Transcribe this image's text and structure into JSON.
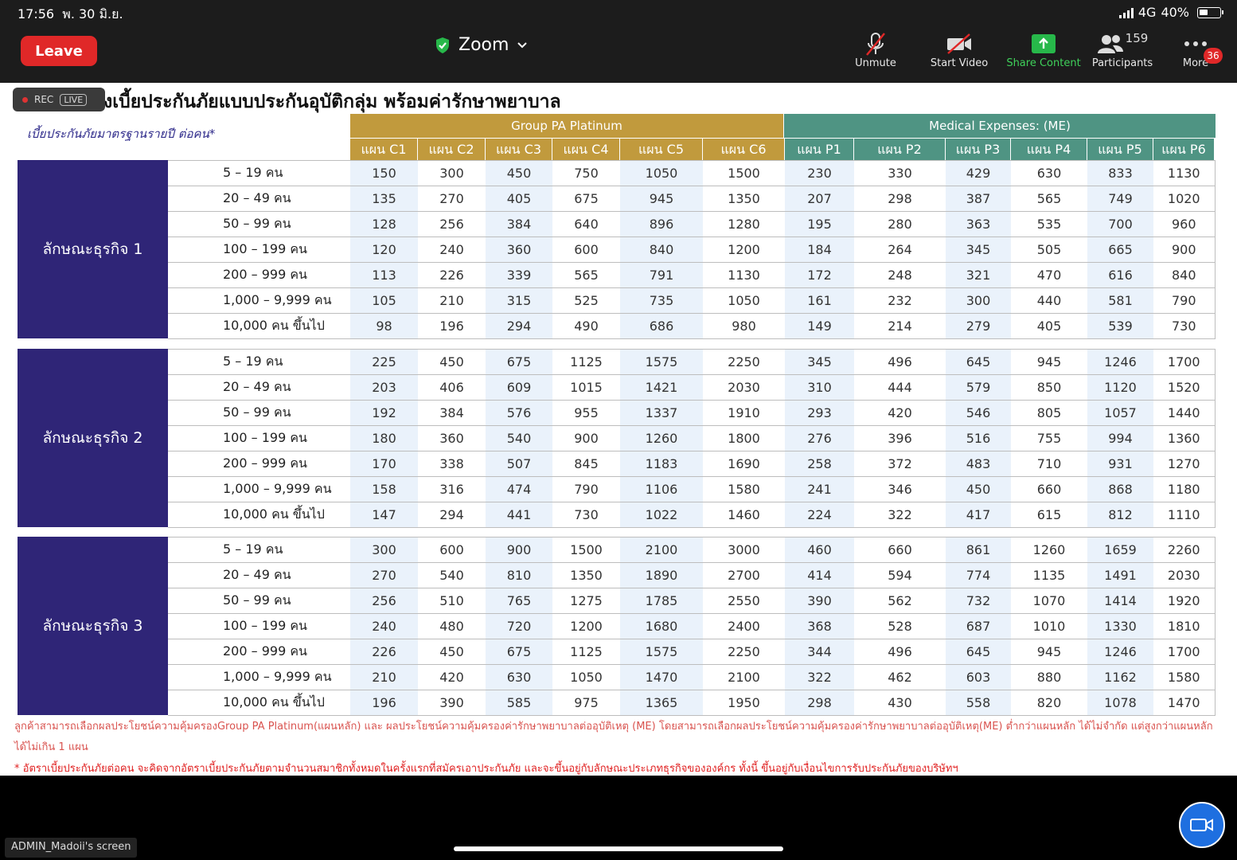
{
  "status": {
    "time": "17:56",
    "date": "พ. 30 มิ.ย.",
    "network": "4G",
    "battery": "40%",
    "battery_level": 0.4
  },
  "meeting": {
    "leave_label": "Leave",
    "app_title": "Zoom",
    "toolbar": {
      "unmute": "Unmute",
      "start_video": "Start Video",
      "share_content": "Share Content",
      "participants": "Participants",
      "participants_count": "159",
      "more": "More",
      "more_badge": "36"
    },
    "rec_label": "REC",
    "live_label": "LIVE",
    "screen_label": "ADMIN_Madoii's screen"
  },
  "doc": {
    "title": "งเบี้ยประกันภัยแบบประกันอุบัติกลุ่ม พร้อมค่ารักษาพยาบาล",
    "rate_label": "เบี้ยประกันภัยมาตรฐานรายปี ต่อคน*",
    "group_pa": "Group PA Platinum",
    "me": "Medical Expenses: (ME)",
    "plans": [
      "แผน C1",
      "แผน C2",
      "แผน C3",
      "แผน C4",
      "แผน C5",
      "แผน C6",
      "แผน P1",
      "แผน P2",
      "แผน P3",
      "แผน P4",
      "แผน P5",
      "แผน P6"
    ],
    "sizes": [
      "5 – 19 คน",
      "20 – 49 คน",
      "50 – 99 คน",
      "100 – 199 คน",
      "200 – 999 คน",
      "1,000 – 9,999 คน",
      "10,000 คน ขึ้นไป"
    ],
    "groups": [
      {
        "name": "ลักษณะธุรกิจ 1",
        "rows": [
          [
            "150",
            "300",
            "450",
            "750",
            "1050",
            "1500",
            "230",
            "330",
            "429",
            "630",
            "833",
            "1130"
          ],
          [
            "135",
            "270",
            "405",
            "675",
            "945",
            "1350",
            "207",
            "298",
            "387",
            "565",
            "749",
            "1020"
          ],
          [
            "128",
            "256",
            "384",
            "640",
            "896",
            "1280",
            "195",
            "280",
            "363",
            "535",
            "700",
            "960"
          ],
          [
            "120",
            "240",
            "360",
            "600",
            "840",
            "1200",
            "184",
            "264",
            "345",
            "505",
            "665",
            "900"
          ],
          [
            "113",
            "226",
            "339",
            "565",
            "791",
            "1130",
            "172",
            "248",
            "321",
            "470",
            "616",
            "840"
          ],
          [
            "105",
            "210",
            "315",
            "525",
            "735",
            "1050",
            "161",
            "232",
            "300",
            "440",
            "581",
            "790"
          ],
          [
            "98",
            "196",
            "294",
            "490",
            "686",
            "980",
            "149",
            "214",
            "279",
            "405",
            "539",
            "730"
          ]
        ]
      },
      {
        "name": "ลักษณะธุรกิจ 2",
        "rows": [
          [
            "225",
            "450",
            "675",
            "1125",
            "1575",
            "2250",
            "345",
            "496",
            "645",
            "945",
            "1246",
            "1700"
          ],
          [
            "203",
            "406",
            "609",
            "1015",
            "1421",
            "2030",
            "310",
            "444",
            "579",
            "850",
            "1120",
            "1520"
          ],
          [
            "192",
            "384",
            "576",
            "955",
            "1337",
            "1910",
            "293",
            "420",
            "546",
            "805",
            "1057",
            "1440"
          ],
          [
            "180",
            "360",
            "540",
            "900",
            "1260",
            "1800",
            "276",
            "396",
            "516",
            "755",
            "994",
            "1360"
          ],
          [
            "170",
            "338",
            "507",
            "845",
            "1183",
            "1690",
            "258",
            "372",
            "483",
            "710",
            "931",
            "1270"
          ],
          [
            "158",
            "316",
            "474",
            "790",
            "1106",
            "1580",
            "241",
            "346",
            "450",
            "660",
            "868",
            "1180"
          ],
          [
            "147",
            "294",
            "441",
            "730",
            "1022",
            "1460",
            "224",
            "322",
            "417",
            "615",
            "812",
            "1110"
          ]
        ]
      },
      {
        "name": "ลักษณะธุรกิจ 3",
        "rows": [
          [
            "300",
            "600",
            "900",
            "1500",
            "2100",
            "3000",
            "460",
            "660",
            "861",
            "1260",
            "1659",
            "2260"
          ],
          [
            "270",
            "540",
            "810",
            "1350",
            "1890",
            "2700",
            "414",
            "594",
            "774",
            "1135",
            "1491",
            "2030"
          ],
          [
            "256",
            "510",
            "765",
            "1275",
            "1785",
            "2550",
            "390",
            "562",
            "732",
            "1070",
            "1414",
            "1920"
          ],
          [
            "240",
            "480",
            "720",
            "1200",
            "1680",
            "2400",
            "368",
            "528",
            "687",
            "1010",
            "1330",
            "1810"
          ],
          [
            "226",
            "450",
            "675",
            "1125",
            "1575",
            "2250",
            "344",
            "496",
            "645",
            "945",
            "1246",
            "1700"
          ],
          [
            "210",
            "420",
            "630",
            "1050",
            "1470",
            "2100",
            "322",
            "462",
            "603",
            "880",
            "1162",
            "1580"
          ],
          [
            "196",
            "390",
            "585",
            "975",
            "1365",
            "1950",
            "298",
            "430",
            "558",
            "820",
            "1078",
            "1470"
          ]
        ]
      }
    ],
    "note1": "ลูกค้าสามารถเลือกผลประโยชน์ความคุ้มครองGroup PA Platinum(แผนหลัก) และ ผลประโยชน์ความคุ้มครองค่ารักษาพยาบาลต่ออุบัติเหตุ (ME) โดยสามารถเลือกผลประโยชน์ความคุ้มครองค่ารักษาพยาบาลต่ออุบัติเหตุ(ME) ต่ำกว่าแผนหลัก ได้ไม่จำกัด แต่สูงกว่าแผนหลักได้ไม่เกิน 1 แผน",
    "note2": "* อัตราเบี้ยประกันภัยต่อคน จะคิดจากอัตราเบี้ยประกันภัยตามจำนวนสมาชิกทั้งหมดในครั้งแรกที่สมัครเอาประกันภัย และจะขึ้นอยู่กับลักษณะประเภทธุรกิจขององค์กร ทั้งนี้ ขึ้นอยู่กับเงื่อนไขการรับประกันภัยของบริษัทฯ"
  },
  "colors": {
    "leave": "#e02828",
    "gold": "#c19a3d",
    "teal": "#4f9483",
    "navy": "#2f2577",
    "share_green": "#3fd15a"
  }
}
